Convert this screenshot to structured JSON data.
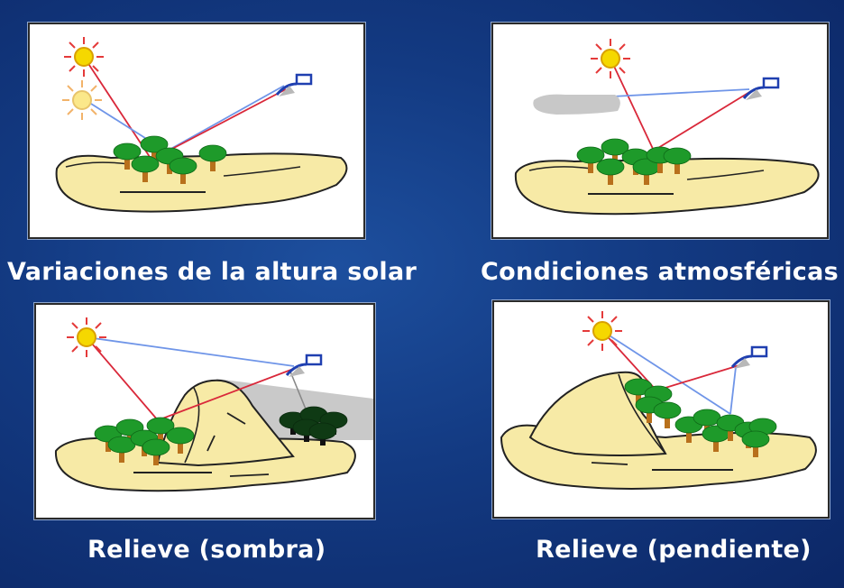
{
  "panels": [
    {
      "caption": "Variaciones de la altura solar",
      "illustration": "sun-elevation"
    },
    {
      "caption": "Condiciones atmosféricas",
      "illustration": "atmosphere-cloud"
    },
    {
      "caption": "Relieve (sombra)",
      "illustration": "relief-shadow"
    },
    {
      "caption": "Relieve (pendiente)",
      "illustration": "relief-slope"
    }
  ],
  "colors": {
    "background": "#133a82",
    "terrain": "#f7eaa6",
    "tree_foliage": "#1e9a2a",
    "tree_trunk": "#b8701c",
    "sun": "#f5d800",
    "sun_rays": "#e43a3a",
    "ray_incident": "#d9283a",
    "ray_reflected": "#6f95e8",
    "sensor": "#1f3fb0",
    "cloud": "#c8c8c8",
    "shadow": "#c0c0c0"
  }
}
